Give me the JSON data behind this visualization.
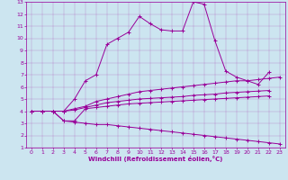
{
  "xlabel": "Windchill (Refroidissement éolien,°C)",
  "bg_color": "#cce5f0",
  "line_color": "#990099",
  "xlim": [
    -0.5,
    23.5
  ],
  "ylim": [
    1,
    13
  ],
  "xticks": [
    0,
    1,
    2,
    3,
    4,
    5,
    6,
    7,
    8,
    9,
    10,
    11,
    12,
    13,
    14,
    15,
    16,
    17,
    18,
    19,
    20,
    21,
    22,
    23
  ],
  "yticks": [
    1,
    2,
    3,
    4,
    5,
    6,
    7,
    8,
    9,
    10,
    11,
    12,
    13
  ],
  "series": [
    {
      "x": [
        0,
        1,
        2,
        3,
        4,
        5,
        6,
        7,
        8,
        9,
        10,
        11,
        12,
        13,
        14,
        15,
        16,
        17,
        18,
        19,
        20,
        21,
        22
      ],
      "y": [
        4.0,
        4.0,
        4.0,
        4.0,
        5.0,
        6.5,
        7.0,
        9.5,
        10.0,
        10.5,
        11.8,
        11.2,
        10.7,
        10.6,
        10.6,
        13.0,
        12.8,
        9.8,
        7.3,
        6.8,
        6.5,
        6.2,
        7.2
      ]
    },
    {
      "x": [
        0,
        1,
        2,
        3,
        4,
        5,
        6,
        7,
        8,
        9,
        10,
        11,
        12,
        13,
        14,
        15,
        16,
        17,
        18,
        19,
        20,
        21,
        22,
        23
      ],
      "y": [
        4.0,
        4.0,
        4.0,
        4.0,
        4.2,
        4.4,
        4.8,
        5.0,
        5.2,
        5.4,
        5.6,
        5.7,
        5.8,
        5.9,
        6.0,
        6.1,
        6.2,
        6.3,
        6.4,
        6.5,
        6.5,
        6.6,
        6.7,
        6.8
      ]
    },
    {
      "x": [
        0,
        1,
        2,
        3,
        4,
        5,
        6,
        7,
        8,
        9,
        10,
        11,
        12,
        13,
        14,
        15,
        16,
        17,
        18,
        19,
        20,
        21,
        22
      ],
      "y": [
        4.0,
        4.0,
        4.0,
        4.0,
        4.1,
        4.3,
        4.5,
        4.7,
        4.8,
        4.9,
        5.0,
        5.05,
        5.1,
        5.15,
        5.2,
        5.3,
        5.35,
        5.4,
        5.5,
        5.55,
        5.6,
        5.65,
        5.7
      ]
    },
    {
      "x": [
        0,
        1,
        2,
        3,
        4,
        5,
        6,
        7,
        8,
        9,
        10,
        11,
        12,
        13,
        14,
        15,
        16,
        17,
        18,
        19,
        20,
        21,
        22
      ],
      "y": [
        4.0,
        4.0,
        4.0,
        3.2,
        3.2,
        4.2,
        4.3,
        4.4,
        4.5,
        4.6,
        4.65,
        4.7,
        4.75,
        4.8,
        4.85,
        4.9,
        4.95,
        5.0,
        5.05,
        5.1,
        5.15,
        5.2,
        5.25
      ]
    },
    {
      "x": [
        0,
        1,
        2,
        3,
        4,
        5,
        6,
        7,
        8,
        9,
        10,
        11,
        12,
        13,
        14,
        15,
        16,
        17,
        18,
        19,
        20,
        21,
        22,
        23
      ],
      "y": [
        4.0,
        4.0,
        4.0,
        3.2,
        3.1,
        3.0,
        2.9,
        2.9,
        2.8,
        2.7,
        2.6,
        2.5,
        2.4,
        2.3,
        2.2,
        2.1,
        2.0,
        1.9,
        1.8,
        1.7,
        1.6,
        1.5,
        1.4,
        1.3
      ]
    }
  ]
}
